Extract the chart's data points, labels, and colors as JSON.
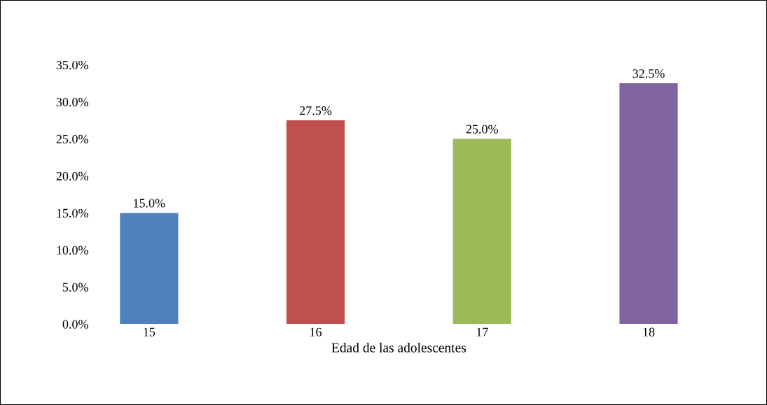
{
  "chart_data": {
    "type": "bar",
    "xlabel": "Edad de las adolescentes",
    "categories": [
      "15",
      "16",
      "17",
      "18"
    ],
    "values": [
      15.0,
      27.5,
      25.0,
      32.5
    ],
    "colors": [
      "#4f81bd",
      "#c0504d",
      "#9bbb59",
      "#8064a2"
    ],
    "value_labels": [
      "15.0%",
      "27.5%",
      "25.0%",
      "32.5%"
    ],
    "ylim": [
      0,
      35
    ],
    "yticks": [
      {
        "value": 0,
        "label": "0.0%"
      },
      {
        "value": 5,
        "label": "5.0%"
      },
      {
        "value": 10,
        "label": "10.0%"
      },
      {
        "value": 15,
        "label": "15.0%"
      },
      {
        "value": 20,
        "label": "20.0%"
      },
      {
        "value": 25,
        "label": "25.0%"
      },
      {
        "value": 30,
        "label": "30.0%"
      },
      {
        "value": 35,
        "label": "35.0%"
      }
    ],
    "grid": false,
    "legend": false
  }
}
